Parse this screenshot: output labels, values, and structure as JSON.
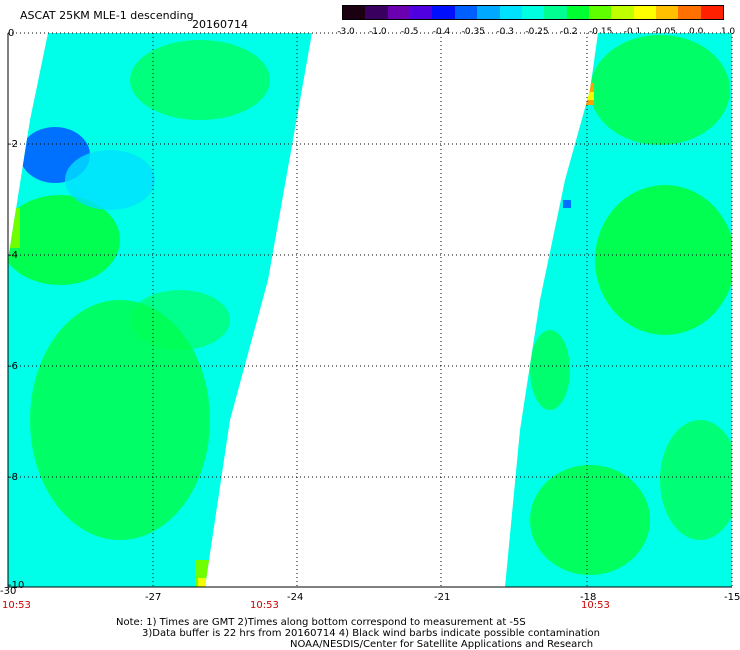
{
  "title": "ASCAT 25KM MLE-1 descending",
  "date": "20160714",
  "colorbar": {
    "colors": [
      "#1a0010",
      "#3a0060",
      "#6a00b0",
      "#5000e0",
      "#0010ff",
      "#0060ff",
      "#00a8ff",
      "#00e0ff",
      "#00ffe0",
      "#00ff90",
      "#00ff30",
      "#60ff00",
      "#c0ff00",
      "#ffff00",
      "#ffc000",
      "#ff7000",
      "#ff2000"
    ],
    "labels": [
      "-3.0",
      "-1.0",
      "-0.5",
      "-0.4",
      "-0.35",
      "-0.3",
      "-0.25",
      "-0.2",
      "-0.15",
      "-0.1",
      "-0.05",
      "0.0",
      "1.0"
    ]
  },
  "map": {
    "lon_range": [
      -30,
      -15
    ],
    "lat_range": [
      -10,
      0
    ],
    "x_ticks": [
      "-30",
      "-27",
      "-24",
      "-21",
      "-18",
      "-15"
    ],
    "y_ticks": [
      "0",
      "-2",
      "-4",
      "-6",
      "-8",
      "-10"
    ],
    "times": [
      "10:53",
      "10:53",
      "10:53"
    ],
    "colors": {
      "cyan": "#00ffe8",
      "cyan2": "#00f8f8",
      "lightblue": "#00e0ff",
      "green": "#00ff50",
      "green2": "#10ff20",
      "lime": "#70ff00",
      "blue": "#0070ff",
      "yellow": "#f0ff00",
      "orange": "#ffa000"
    }
  },
  "notes": {
    "line1": "Note: 1) Times are GMT 2)Times along bottom correspond to measurement at -5S",
    "line2": "3)Data buffer is 22 hrs from 20160714 4) Black wind barbs indicate possible contamination",
    "line3": "NOAA/NESDIS/Center for Satellite Applications and Research"
  }
}
